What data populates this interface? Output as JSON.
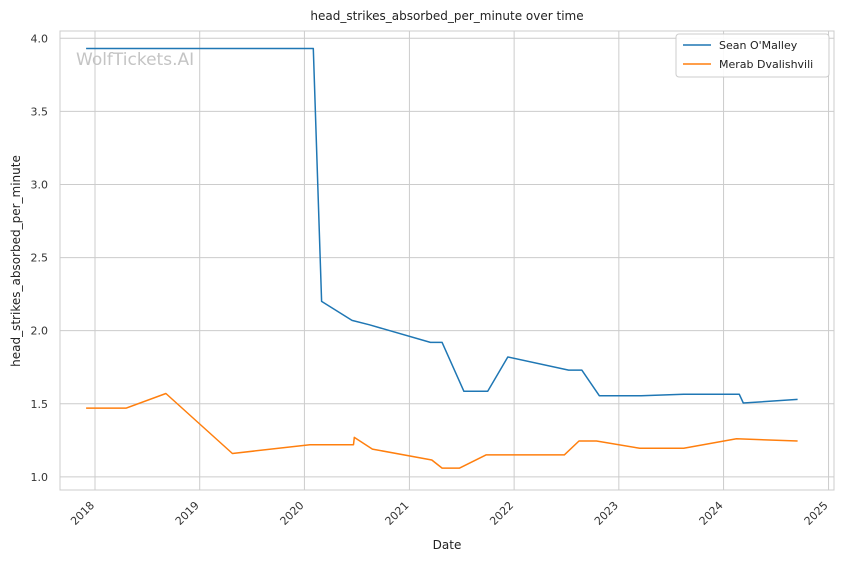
{
  "watermark": "WolfTickets.AI",
  "chart_data": {
    "type": "line",
    "title": "head_strikes_absorbed_per_minute over time",
    "xlabel": "Date",
    "ylabel": "head_strikes_absorbed_per_minute",
    "x_ticks": [
      "2018",
      "2019",
      "2020",
      "2021",
      "2022",
      "2023",
      "2024",
      "2025"
    ],
    "y_ticks": [
      "1.0",
      "1.5",
      "2.0",
      "2.5",
      "3.0",
      "3.5",
      "4.0"
    ],
    "xlim": [
      "2017-09-01",
      "2025-01-20"
    ],
    "ylim": [
      0.91,
      4.05
    ],
    "grid": true,
    "legend_position": "top-right",
    "series": [
      {
        "name": "Sean O'Malley",
        "color": "#1f77b4",
        "points": [
          [
            "2017-12-01",
            3.93
          ],
          [
            "2020-02-01",
            3.93
          ],
          [
            "2020-03-01",
            2.2
          ],
          [
            "2020-06-15",
            2.07
          ],
          [
            "2020-08-15",
            2.04
          ],
          [
            "2021-03-15",
            1.92
          ],
          [
            "2021-04-25",
            1.92
          ],
          [
            "2021-07-10",
            1.585
          ],
          [
            "2021-10-01",
            1.585
          ],
          [
            "2021-12-10",
            1.82
          ],
          [
            "2022-07-10",
            1.73
          ],
          [
            "2022-08-25",
            1.73
          ],
          [
            "2022-10-25",
            1.555
          ],
          [
            "2023-03-20",
            1.555
          ],
          [
            "2023-08-15",
            1.565
          ],
          [
            "2024-02-25",
            1.565
          ],
          [
            "2024-03-10",
            1.505
          ],
          [
            "2024-09-15",
            1.53
          ]
        ]
      },
      {
        "name": "Merab Dvalishvili",
        "color": "#ff7f0e",
        "points": [
          [
            "2017-12-01",
            1.47
          ],
          [
            "2018-04-20",
            1.47
          ],
          [
            "2018-09-05",
            1.57
          ],
          [
            "2019-04-25",
            1.16
          ],
          [
            "2020-01-20",
            1.22
          ],
          [
            "2020-06-20",
            1.22
          ],
          [
            "2020-06-23",
            1.27
          ],
          [
            "2020-08-25",
            1.19
          ],
          [
            "2021-03-20",
            1.115
          ],
          [
            "2021-04-25",
            1.06
          ],
          [
            "2021-06-25",
            1.06
          ],
          [
            "2021-09-25",
            1.15
          ],
          [
            "2022-06-25",
            1.15
          ],
          [
            "2022-08-15",
            1.245
          ],
          [
            "2022-10-15",
            1.245
          ],
          [
            "2023-03-15",
            1.195
          ],
          [
            "2023-08-15",
            1.195
          ],
          [
            "2024-02-15",
            1.26
          ],
          [
            "2024-09-15",
            1.245
          ]
        ]
      }
    ]
  }
}
